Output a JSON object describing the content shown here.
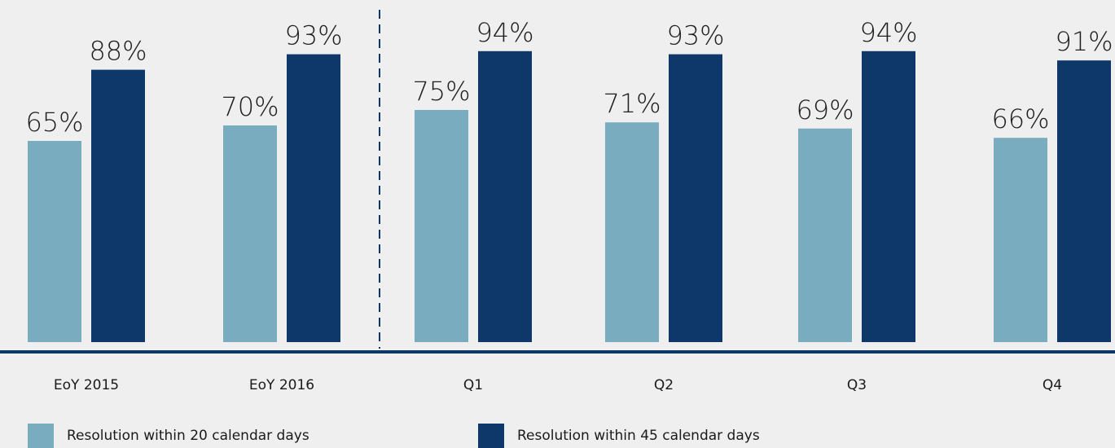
{
  "chart_data": {
    "type": "bar",
    "categories": [
      "EoY 2015",
      "EoY 2016",
      "Q1",
      "Q2",
      "Q3",
      "Q4"
    ],
    "series": [
      {
        "name": "Resolution within 20 calendar days",
        "values": [
          65,
          70,
          75,
          71,
          69,
          66
        ],
        "labels": [
          "65%",
          "70%",
          "75%",
          "71%",
          "69%",
          "66%"
        ],
        "color": "#7aacbf"
      },
      {
        "name": "Resolution within 45 calendar days",
        "values": [
          88,
          93,
          94,
          93,
          94,
          91
        ],
        "labels": [
          "88%",
          "93%",
          "94%",
          "93%",
          "94%",
          "91%"
        ],
        "color": "#0f386a"
      }
    ],
    "ylim": [
      0,
      100
    ],
    "grid": false,
    "legend": "bottom",
    "divider": "dashed vertical line between EoY 2016 and Q1",
    "colors": {
      "background": "#efefef",
      "axis": "#0f386a",
      "text": "#1a1a1a"
    }
  }
}
